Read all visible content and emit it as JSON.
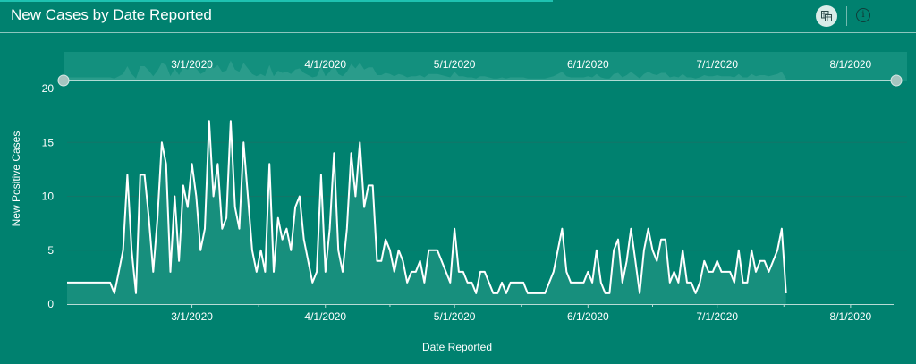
{
  "header": {
    "title": "New Cases by Date Reported",
    "table_icon": "table-view-icon",
    "info_icon": "info-icon",
    "info_glyph": "i"
  },
  "colors": {
    "background": "#00816f",
    "line": "#ffffff",
    "area_fill": "#2a9a89",
    "overview_fill": "#13907e",
    "accent": "#1ec2b1"
  },
  "chart_data": {
    "type": "line",
    "title": "New Cases by Date Reported",
    "xlabel": "Date Reported",
    "ylabel": "New Positive Cases",
    "ylim": [
      0,
      20
    ],
    "yticks": [
      "0",
      "5",
      "10",
      "15",
      "20"
    ],
    "xticks": [
      "3/1/2020",
      "4/1/2020",
      "5/1/2020",
      "6/1/2020",
      "7/1/2020",
      "8/1/2020"
    ],
    "x_start": "2020-02-01",
    "x_end": "2020-08-11",
    "grid": true,
    "legend": "none",
    "series": [
      {
        "values": [
          2,
          2,
          2,
          2,
          2,
          2,
          2,
          2,
          2,
          2,
          2,
          1,
          3,
          5,
          12,
          5,
          1,
          12,
          12,
          8,
          3,
          8,
          15,
          13,
          3,
          10,
          4,
          11,
          9,
          13,
          10,
          5,
          7,
          17,
          10,
          13,
          7,
          8,
          17,
          9,
          7,
          15,
          10,
          5,
          3,
          5,
          3,
          13,
          3,
          8,
          6,
          7,
          5,
          9,
          10,
          6,
          4,
          2,
          3,
          12,
          3,
          7,
          14,
          5,
          3,
          7,
          14,
          10,
          15,
          9,
          11,
          11,
          4,
          4,
          6,
          5,
          3,
          5,
          4,
          2,
          3,
          3,
          4,
          2,
          5,
          5,
          5,
          4,
          3,
          2,
          7,
          3,
          3,
          2,
          2,
          1,
          3,
          3,
          2,
          1,
          1,
          2,
          1,
          2,
          2,
          2,
          2,
          1,
          1,
          1,
          1,
          1,
          2,
          3,
          5,
          7,
          3,
          2,
          2,
          2,
          2,
          3,
          2,
          5,
          2,
          1,
          1,
          5,
          6,
          2,
          4,
          7,
          4,
          1,
          5,
          7,
          5,
          4,
          6,
          6,
          2,
          3,
          2,
          5,
          2,
          2,
          1,
          2,
          4,
          3,
          3,
          4,
          3,
          3,
          3,
          2,
          5,
          2,
          2,
          5,
          3,
          4,
          4,
          3,
          4,
          5,
          7,
          1
        ]
      }
    ]
  }
}
